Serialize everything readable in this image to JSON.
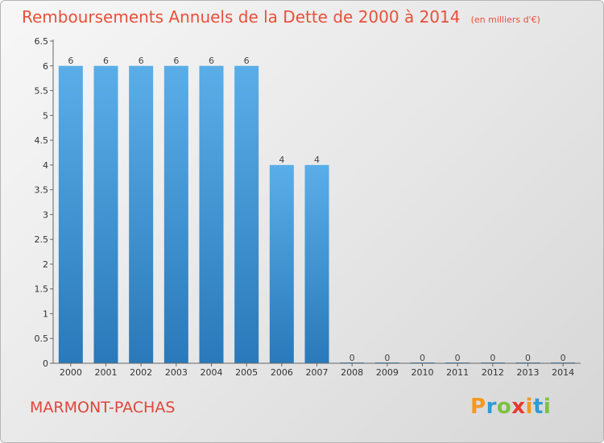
{
  "title": "Remboursements Annuels de la Dette de 2000 à 2014",
  "unit": "(en milliers d'€)",
  "commune": "MARMONT-PACHAS",
  "logo": {
    "letters": [
      "P",
      "r",
      "o",
      "x",
      "i",
      "t",
      "i"
    ],
    "colors": [
      "#f39a1e",
      "#2e9bd6",
      "#7cc242",
      "#e53b2f",
      "#f39a1e",
      "#2e9bd6",
      "#7cc242"
    ]
  },
  "colors": {
    "bar": "#2f86c8",
    "bar_light": "#5aaee8",
    "title": "#e8503a"
  },
  "chart_data": {
    "type": "bar",
    "categories": [
      "2000",
      "2001",
      "2002",
      "2003",
      "2004",
      "2005",
      "2006",
      "2007",
      "2008",
      "2009",
      "2010",
      "2011",
      "2012",
      "2013",
      "2014"
    ],
    "values": [
      6,
      6,
      6,
      6,
      6,
      6,
      4,
      4,
      0,
      0,
      0,
      0,
      0,
      0,
      0
    ],
    "value_labels": [
      "6",
      "6",
      "6",
      "6",
      "6",
      "6",
      "4",
      "4",
      "0",
      "0",
      "0",
      "0",
      "0",
      "0",
      "0"
    ],
    "y_ticks": [
      "0",
      "0.5",
      "1",
      "1.5",
      "2",
      "2.5",
      "3",
      "3.5",
      "4",
      "4.5",
      "5",
      "5.5",
      "6",
      "6.5"
    ],
    "ylim": [
      0,
      6.5
    ],
    "grid": false
  }
}
